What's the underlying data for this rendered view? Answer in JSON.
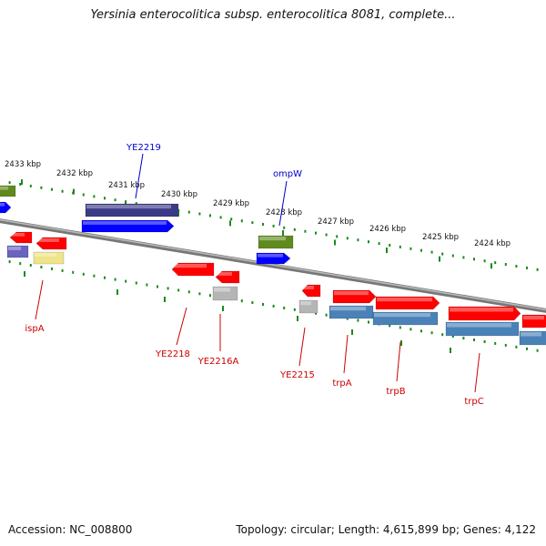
{
  "title": "Yersinia enterocolitica subsp. enterocolitica 8081, complete...",
  "footer": {
    "accession": "Accession: NC_008800",
    "topology": "Topology: circular; Length: 4,615,899 bp; Genes: 4,122"
  },
  "kbp_labels": [
    "2433 kbp",
    "2432 kbp",
    "2431 kbp",
    "2430 kbp",
    "2429 kbp",
    "2428 kbp",
    "2427 kbp",
    "2426 kbp",
    "2425 kbp",
    "2424 kbp"
  ],
  "gene_labels": {
    "top": [
      "YE2219",
      "ompW"
    ],
    "bottom": [
      "ispA",
      "YE2218",
      "YE2216A",
      "YE2215",
      "trpA",
      "trpB",
      "trpC"
    ]
  },
  "colors": {
    "top_label": "#0000cc",
    "bottom_label": "#cc0000",
    "gene_red": "#ff0000",
    "gene_blue": "#0000ff",
    "gene_navy": "#3b3a86",
    "gene_olive": "#5f8a1e",
    "gene_steel": "#4a82b8",
    "gene_grey": "#b5b5b5",
    "gene_yellow": "#eee48a",
    "gene_violet": "#6a63c0",
    "tick_green": "#1a8a1a",
    "backbone": "#888888"
  }
}
